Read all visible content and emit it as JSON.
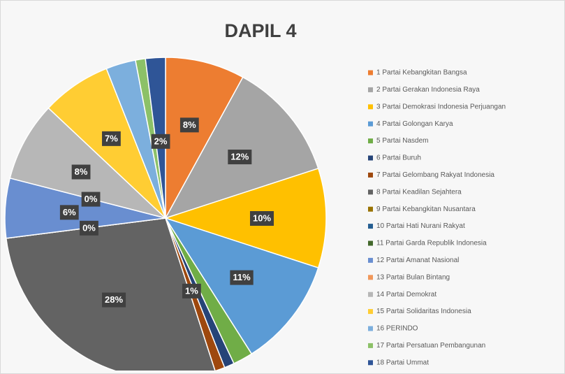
{
  "chart_data": {
    "type": "pie",
    "title": "DAPIL 4",
    "categories": [
      "1 Partai Kebangkitan Bangsa",
      "2 Partai Gerakan Indonesia Raya",
      "3 Partai Demokrasi Indonesia Perjuangan",
      "4 Partai Golongan Karya",
      "5 Partai Nasdem",
      "6 Partai Buruh",
      "7 Partai Gelombang Rakyat Indonesia",
      "8 Partai Keadilan Sejahtera",
      "9 Partai Kebangkitan Nusantara",
      "10 Partai Hati Nurani Rakyat",
      "11 Partai Garda Republik Indonesia",
      "12 Partai Amanat Nasional",
      "13 Partai Bulan Bintang",
      "14 Partai Demokrat",
      "15 Partai Solidaritas Indonesia",
      "16 PERINDO",
      "17 Partai Persatuan Pembangunan",
      "18 Partai Ummat"
    ],
    "values": [
      8,
      12,
      10,
      11,
      2,
      1,
      1,
      28,
      0,
      0,
      0,
      6,
      0,
      8,
      7,
      3,
      1,
      2
    ],
    "value_labels": [
      "8%",
      "12%",
      "10%",
      "11%",
      null,
      null,
      "1%",
      "28%",
      "0%",
      null,
      null,
      "6%",
      "0%",
      "8%",
      "7%",
      null,
      null,
      "2%"
    ],
    "colors": [
      "#ed7d31",
      "#a5a5a5",
      "#ffc000",
      "#5b9bd5",
      "#70ad47",
      "#264478",
      "#9e480e",
      "#636363",
      "#997300",
      "#255e91",
      "#43682b",
      "#698ed0",
      "#f1975a",
      "#b7b7b7",
      "#ffcd33",
      "#7cafdd",
      "#8cc168",
      "#2f5597"
    ]
  }
}
